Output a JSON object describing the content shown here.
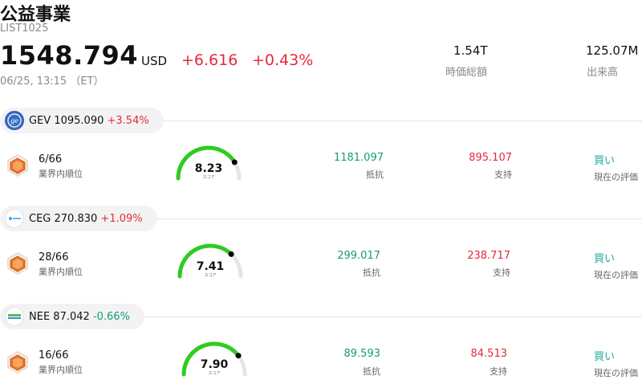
{
  "header": {
    "title": "公益事業",
    "code": "LIST1025",
    "price": "1548.794",
    "currency": "USD",
    "change": "+6.616",
    "change_pct": "+0.43%",
    "timestamp": "06/25, 13:15 （ET）",
    "market_cap_value": "1.54T",
    "market_cap_label": "時価総額",
    "volume_value": "125.07M",
    "volume_label": "出来高"
  },
  "colors": {
    "up": "#e5293b",
    "down": "#149a7a",
    "buy": "#1aab9b",
    "gauge_green": "#2ecc1f"
  },
  "stocks": [
    {
      "ticker": "GEV",
      "price": "1095.090",
      "change_pct": "+3.54%",
      "direction": "up",
      "logo_icon": "ge-vernova-logo-icon",
      "rank": "6/66",
      "rank_label": "業界内順位",
      "score": "8.23",
      "score_fraction": 0.823,
      "score_label": "スコア",
      "resistance": "1181.097",
      "resistance_label": "抵抗",
      "support": "895.107",
      "support_label": "支持",
      "rating": "買い",
      "rating_label": "現在の評価"
    },
    {
      "ticker": "CEG",
      "price": "270.830",
      "change_pct": "+1.09%",
      "direction": "up",
      "logo_icon": "constellation-logo-icon",
      "rank": "28/66",
      "rank_label": "業界内順位",
      "score": "7.41",
      "score_fraction": 0.741,
      "score_label": "スコア",
      "resistance": "299.017",
      "resistance_label": "抵抗",
      "support": "238.717",
      "support_label": "支持",
      "rating": "買い",
      "rating_label": "現在の評価"
    },
    {
      "ticker": "NEE",
      "price": "87.042",
      "change_pct": "-0.66%",
      "direction": "down",
      "logo_icon": "nextera-logo-icon",
      "rank": "16/66",
      "rank_label": "業界内順位",
      "score": "7.90",
      "score_fraction": 0.79,
      "score_label": "スコア",
      "resistance": "89.593",
      "resistance_label": "抵抗",
      "support": "84.513",
      "support_label": "支持",
      "rating": "買い",
      "rating_label": "現在の評価"
    }
  ]
}
